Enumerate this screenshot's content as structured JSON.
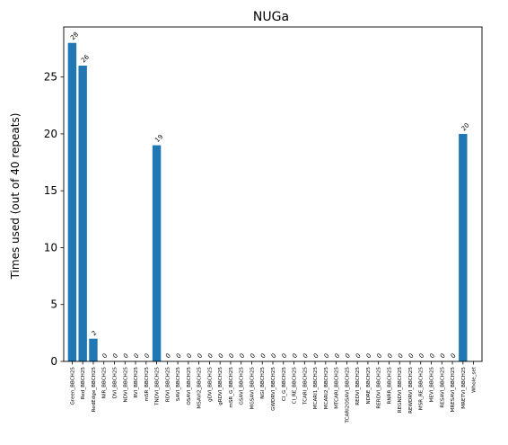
{
  "chart_data": {
    "type": "bar",
    "title": "NUGa",
    "xlabel": "",
    "ylabel": "Times used (out of 40 repeats)",
    "ylim": [
      0,
      29.4
    ],
    "yticks": [
      0,
      5,
      10,
      15,
      20,
      25
    ],
    "bar_color": "#1f77b4",
    "grid": false,
    "legend": "none",
    "categories": [
      "Green_BBCH25",
      "Red_BBCH25",
      "RedEdge_BBCH25",
      "NIR_BBCH25",
      "DVI_BBCH25",
      "NDVI_BBCH25",
      "RVI_BBCH25",
      "mSR_BBCH25",
      "TNDVI_BBCH25",
      "RDVI_BBCH25",
      "SAVI_BBCH25",
      "OSAVI_BBCH25",
      "MSAVI2_BBCH25",
      "gDVI_BBCH25",
      "gRDVI_BBCH25",
      "mSR_G_BBCH25",
      "GSAVI_BBCH25",
      "MGSAVI_BBCH25",
      "NGI_BBCH25",
      "GWDRVI_BBCH25",
      "CI_G_BBCH25",
      "CI_RE_BBCH25",
      "TCARI_BBCH25",
      "MCARI1_BBCH25",
      "MCARI2_BBCH25",
      "MTCARI_BBCH25",
      "TCARI2OSAVI_BBCH25",
      "REDVI_BBCH25",
      "NDRE_BBCH25",
      "RERDVI_BBCH25",
      "RNRR_BBCH25",
      "REGNDVI_BBCH25",
      "REWDRVI_BBCH25",
      "MSR_RE_BBCH25",
      "MEVI_BBCH25",
      "RESAVI_BBCH25",
      "MRESAVI_BBCH25",
      "MRETVI_BBCH25",
      "Whole_set"
    ],
    "values": [
      28,
      26,
      2,
      0,
      0,
      0,
      0,
      0,
      19,
      0,
      0,
      0,
      0,
      0,
      0,
      0,
      0,
      0,
      0,
      0,
      0,
      0,
      0,
      0,
      0,
      0,
      0,
      0,
      0,
      0,
      0,
      0,
      0,
      0,
      0,
      0,
      0,
      20,
      null
    ],
    "data_labels": [
      "28",
      "26",
      "2",
      "0",
      "0",
      "0",
      "0",
      "0",
      "19",
      "0",
      "0",
      "0",
      "0",
      "0",
      "0",
      "0",
      "0",
      "0",
      "0",
      "0",
      "0",
      "0",
      "0",
      "0",
      "0",
      "0",
      "0",
      "0",
      "0",
      "0",
      "0",
      "0",
      "0",
      "0",
      "0",
      "0",
      "0",
      "20",
      ""
    ]
  }
}
